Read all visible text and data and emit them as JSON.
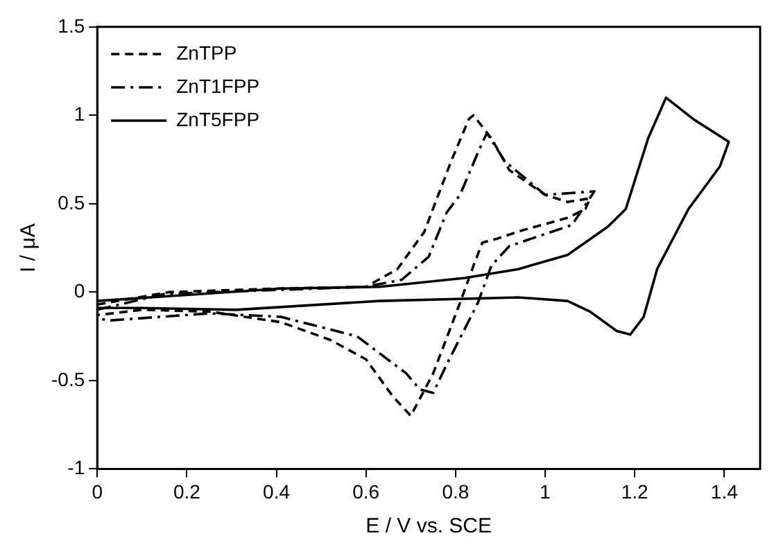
{
  "chart_data": {
    "type": "line",
    "xlabel": "E / V vs. SCE",
    "ylabel": "I / μA",
    "xlim": [
      0,
      1.48
    ],
    "xticks": [
      0,
      0.2,
      0.4,
      0.6,
      0.8,
      1,
      1.2,
      1.4
    ],
    "ylim": [
      -1,
      1.5
    ],
    "yticks": [
      -1,
      -0.5,
      0,
      0.5,
      1,
      1.5
    ],
    "grid": false,
    "legend": "top left",
    "marker": "none",
    "series": [
      {
        "name": "ZnTPP",
        "color": "#000000",
        "line_style": "dashed",
        "x": [
          0,
          0.16,
          0.4,
          0.6,
          0.67,
          0.73,
          0.79,
          0.83,
          0.84,
          0.88,
          0.92,
          1.0,
          1.05,
          1.1,
          1.09,
          1.05,
          0.95,
          0.89,
          0.86,
          0.84,
          0.81,
          0.75,
          0.7,
          0.66,
          0.6,
          0.52,
          0.41,
          0.25,
          0.1,
          0
        ],
        "values": [
          -0.07,
          0.0,
          0.02,
          0.03,
          0.13,
          0.34,
          0.74,
          0.98,
          1.0,
          0.87,
          0.69,
          0.55,
          0.51,
          0.53,
          0.47,
          0.42,
          0.35,
          0.3,
          0.28,
          0.15,
          -0.06,
          -0.46,
          -0.7,
          -0.59,
          -0.38,
          -0.27,
          -0.17,
          -0.11,
          -0.1,
          -0.13
        ]
      },
      {
        "name": "ZnT1FPP",
        "color": "#000000",
        "line_style": "dashdot",
        "x": [
          0,
          0.15,
          0.6,
          0.68,
          0.74,
          0.78,
          0.81,
          0.85,
          0.87,
          0.91,
          1.0,
          1.11,
          1.06,
          0.92,
          0.88,
          0.85,
          0.78,
          0.75,
          0.72,
          0.69,
          0.58,
          0.41,
          0.25,
          0.03,
          0
        ],
        "values": [
          -0.1,
          -0.01,
          0.03,
          0.07,
          0.2,
          0.45,
          0.55,
          0.79,
          0.9,
          0.74,
          0.55,
          0.57,
          0.38,
          0.26,
          0.15,
          -0.06,
          -0.41,
          -0.57,
          -0.55,
          -0.46,
          -0.25,
          -0.14,
          -0.12,
          -0.16,
          -0.15
        ]
      },
      {
        "name": "ZnT5FPP",
        "color": "#000000",
        "line_style": "solid",
        "x": [
          0,
          0.41,
          0.63,
          0.82,
          0.94,
          1.05,
          1.14,
          1.18,
          1.23,
          1.27,
          1.33,
          1.41,
          1.39,
          1.32,
          1.25,
          1.22,
          1.19,
          1.16,
          1.1,
          1.05,
          0.94,
          0.63,
          0.31,
          0.1,
          0
        ],
        "values": [
          -0.05,
          0.02,
          0.03,
          0.08,
          0.13,
          0.21,
          0.37,
          0.47,
          0.87,
          1.1,
          0.98,
          0.85,
          0.71,
          0.47,
          0.13,
          -0.14,
          -0.24,
          -0.22,
          -0.11,
          -0.05,
          -0.03,
          -0.05,
          -0.1,
          -0.09,
          -0.09
        ]
      }
    ]
  }
}
